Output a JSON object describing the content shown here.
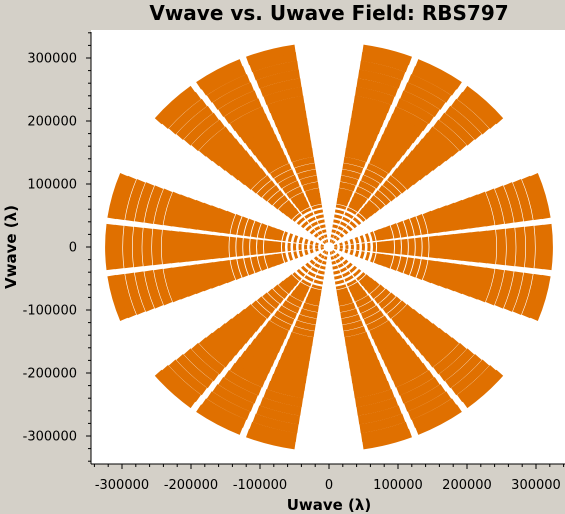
{
  "chart_data": {
    "type": "scatter",
    "title": "Vwave vs. Uwave Field: RBS797",
    "xlabel": "Uwave (λ)",
    "ylabel": "Vwave (λ)",
    "xlim": [
      -340000,
      340000
    ],
    "ylim": [
      -345000,
      335000
    ],
    "xticks": [
      -300000,
      -200000,
      -100000,
      0,
      100000,
      200000,
      300000
    ],
    "yticks": [
      300000,
      200000,
      100000,
      0,
      -100000,
      -200000,
      -300000
    ],
    "xtick_labels": [
      "-300000",
      "-200000",
      "-100000",
      "0",
      "100000",
      "200000",
      "300000"
    ],
    "ytick_labels": [
      "300000",
      "200000",
      "100000",
      "0",
      "-100000",
      "-200000",
      "-300000"
    ],
    "grid": false,
    "marker_color": "#e07000",
    "series": [
      {
        "description_of_pattern": "",
        "arm_angles_deg": [
          0,
          60,
          120,
          180,
          240,
          300
        ],
        "arm_half_width_deg": 22,
        "arc_radii": [
          10000,
          18000,
          26000,
          34000,
          42000,
          50000,
          58000,
          66000,
          74000,
          82000,
          90000,
          100000,
          110000,
          120000,
          130000,
          140000,
          152000,
          164000,
          176000,
          188000,
          200000,
          212000,
          224000,
          236000,
          250000,
          264000,
          278000,
          292000,
          306000,
          318000
        ]
      }
    ]
  }
}
